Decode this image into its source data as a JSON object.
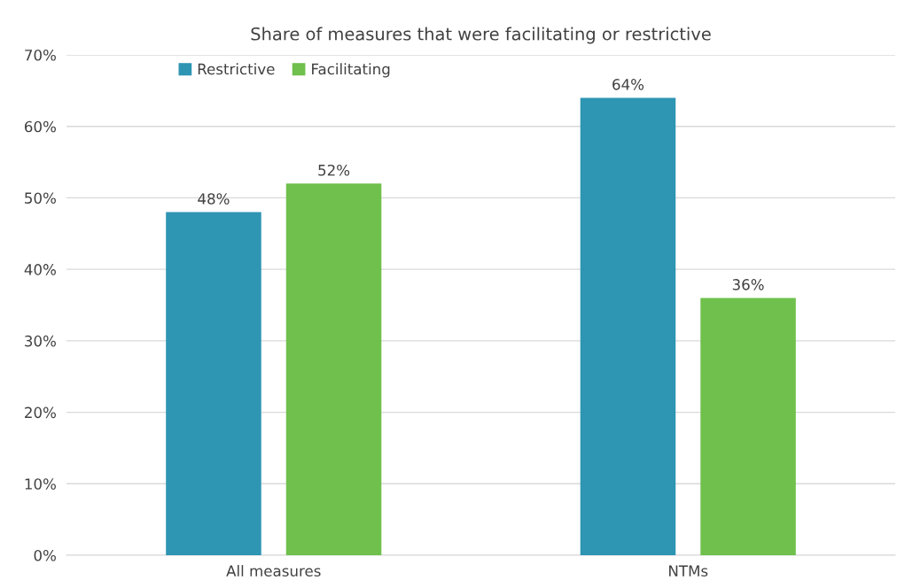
{
  "chart_data": {
    "type": "bar",
    "title": "Share of measures that were facilitating or restrictive",
    "categories": [
      "All measures",
      "NTMs"
    ],
    "series": [
      {
        "name": "Restrictive",
        "color": "#2e95b3",
        "values": [
          48,
          64
        ],
        "value_labels": [
          "48%",
          "64%"
        ]
      },
      {
        "name": "Facilitating",
        "color": "#6fc04c",
        "values": [
          52,
          36
        ],
        "value_labels": [
          "52%",
          "36%"
        ]
      }
    ],
    "ylim": [
      0,
      70
    ],
    "yticks": [
      {
        "value": 0,
        "label": "0%"
      },
      {
        "value": 10,
        "label": "10%"
      },
      {
        "value": 20,
        "label": "20%"
      },
      {
        "value": 30,
        "label": "30%"
      },
      {
        "value": 40,
        "label": "40%"
      },
      {
        "value": 50,
        "label": "50%"
      },
      {
        "value": 60,
        "label": "60%"
      },
      {
        "value": 70,
        "label": "70%"
      }
    ],
    "grid": "y",
    "legend": "top left"
  }
}
